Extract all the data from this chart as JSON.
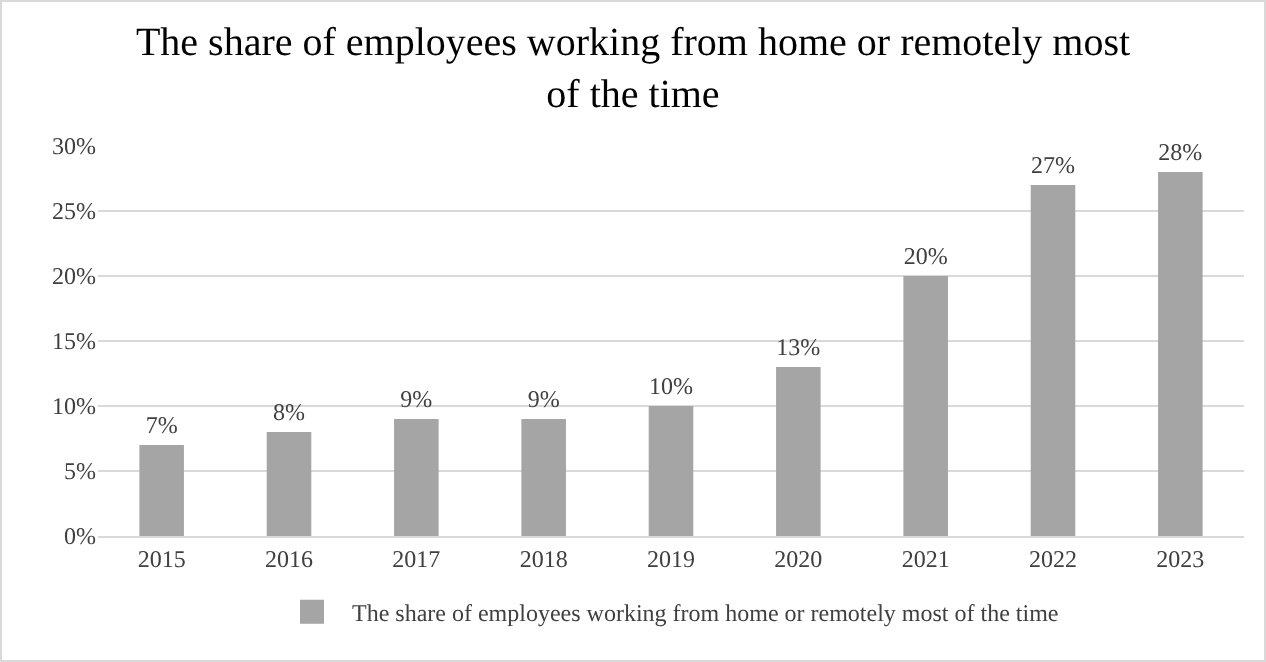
{
  "chart_data": {
    "type": "bar",
    "title": "The share of employees working from home or remotely most of the time",
    "categories": [
      "2015",
      "2016",
      "2017",
      "2018",
      "2019",
      "2020",
      "2021",
      "2022",
      "2023"
    ],
    "series": [
      {
        "name": "The share of employees working from home or remotely most of the time",
        "color": "#a5a5a5",
        "values": [
          7,
          8,
          9,
          9,
          10,
          13,
          20,
          27,
          28
        ],
        "value_labels": [
          "7%",
          "8%",
          "9%",
          "9%",
          "10%",
          "13%",
          "20%",
          "27%",
          "28%"
        ]
      }
    ],
    "ylim": [
      0,
      30
    ],
    "yticks": [
      {
        "value": 0,
        "label": "0%"
      },
      {
        "value": 5,
        "label": "5%"
      },
      {
        "value": 10,
        "label": "10%"
      },
      {
        "value": 15,
        "label": "15%"
      },
      {
        "value": 20,
        "label": "20%"
      },
      {
        "value": 25,
        "label": "25%"
      },
      {
        "value": 30,
        "label": "30%"
      }
    ],
    "grid": "y",
    "legend": "bottom"
  }
}
